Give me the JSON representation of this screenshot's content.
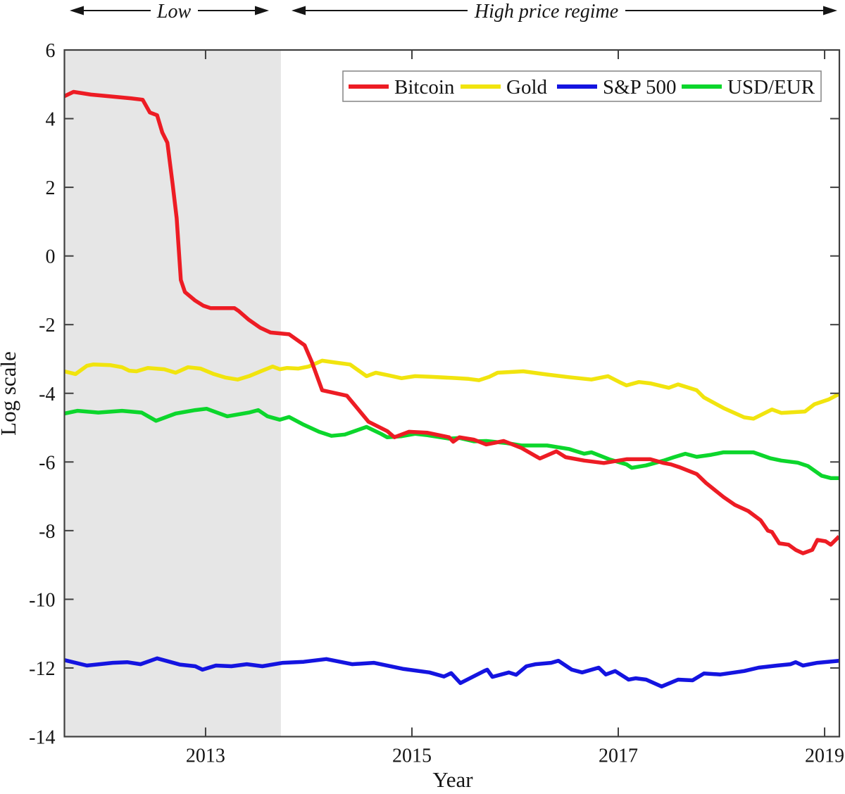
{
  "chart_data": {
    "type": "line",
    "title": "",
    "xlabel": "Year",
    "ylabel": "Log scale",
    "xlim": [
      2011.632,
      2019.143
    ],
    "ylim": [
      -14,
      6
    ],
    "grid": false,
    "legend_position": "top-inside",
    "x_ticks": [
      {
        "v": 2013,
        "label": "2013"
      },
      {
        "v": 2015,
        "label": "2015"
      },
      {
        "v": 2017,
        "label": "2017"
      },
      {
        "v": 2019,
        "label": "2019"
      }
    ],
    "y_ticks": [
      {
        "v": 6,
        "label": "6"
      },
      {
        "v": 4,
        "label": "4"
      },
      {
        "v": 2,
        "label": "2"
      },
      {
        "v": 0,
        "label": "0"
      },
      {
        "v": -2,
        "label": "-2"
      },
      {
        "v": -4,
        "label": "-4"
      },
      {
        "v": -6,
        "label": "-6"
      },
      {
        "v": -8,
        "label": "-8"
      },
      {
        "v": -10,
        "label": "-10"
      },
      {
        "v": -12,
        "label": "-12"
      },
      {
        "v": -14,
        "label": "-14"
      }
    ],
    "regimes": [
      {
        "label": "Low",
        "from": 2011.632,
        "to": 2013.73,
        "shaded": true,
        "shade_color": "#e6e6e6"
      },
      {
        "label": "High price regime",
        "from": 2013.73,
        "to": 2019.143,
        "shaded": false
      }
    ],
    "series": [
      {
        "name": "Bitcoin",
        "color": "#ed1c24",
        "points": [
          [
            2011.63,
            4.65
          ],
          [
            2011.72,
            4.78
          ],
          [
            2011.89,
            4.7
          ],
          [
            2012.1,
            4.64
          ],
          [
            2012.28,
            4.59
          ],
          [
            2012.39,
            4.55
          ],
          [
            2012.46,
            4.18
          ],
          [
            2012.53,
            4.1
          ],
          [
            2012.58,
            3.6
          ],
          [
            2012.63,
            3.3
          ],
          [
            2012.68,
            2.1
          ],
          [
            2012.72,
            1.1
          ],
          [
            2012.76,
            -0.7
          ],
          [
            2012.8,
            -1.05
          ],
          [
            2012.9,
            -1.3
          ],
          [
            2012.98,
            -1.45
          ],
          [
            2013.05,
            -1.52
          ],
          [
            2013.28,
            -1.52
          ],
          [
            2013.32,
            -1.6
          ],
          [
            2013.42,
            -1.86
          ],
          [
            2013.53,
            -2.09
          ],
          [
            2013.63,
            -2.23
          ],
          [
            2013.81,
            -2.28
          ],
          [
            2013.96,
            -2.6
          ],
          [
            2014.03,
            -3.09
          ],
          [
            2014.13,
            -3.91
          ],
          [
            2014.22,
            -3.97
          ],
          [
            2014.37,
            -4.07
          ],
          [
            2014.58,
            -4.83
          ],
          [
            2014.76,
            -5.1
          ],
          [
            2014.83,
            -5.28
          ],
          [
            2014.97,
            -5.12
          ],
          [
            2015.15,
            -5.15
          ],
          [
            2015.36,
            -5.28
          ],
          [
            2015.4,
            -5.41
          ],
          [
            2015.46,
            -5.28
          ],
          [
            2015.6,
            -5.35
          ],
          [
            2015.72,
            -5.49
          ],
          [
            2015.89,
            -5.39
          ],
          [
            2016.06,
            -5.59
          ],
          [
            2016.24,
            -5.9
          ],
          [
            2016.4,
            -5.69
          ],
          [
            2016.49,
            -5.86
          ],
          [
            2016.67,
            -5.96
          ],
          [
            2016.86,
            -6.03
          ],
          [
            2017.08,
            -5.92
          ],
          [
            2017.31,
            -5.92
          ],
          [
            2017.44,
            -6.03
          ],
          [
            2017.51,
            -6.07
          ],
          [
            2017.59,
            -6.15
          ],
          [
            2017.76,
            -6.35
          ],
          [
            2017.85,
            -6.61
          ],
          [
            2018.02,
            -7.02
          ],
          [
            2018.13,
            -7.25
          ],
          [
            2018.26,
            -7.43
          ],
          [
            2018.38,
            -7.7
          ],
          [
            2018.45,
            -8.0
          ],
          [
            2018.49,
            -8.04
          ],
          [
            2018.56,
            -8.37
          ],
          [
            2018.65,
            -8.41
          ],
          [
            2018.72,
            -8.56
          ],
          [
            2018.79,
            -8.66
          ],
          [
            2018.88,
            -8.56
          ],
          [
            2018.93,
            -8.27
          ],
          [
            2019.01,
            -8.31
          ],
          [
            2019.06,
            -8.41
          ],
          [
            2019.14,
            -8.17
          ]
        ]
      },
      {
        "name": "Gold",
        "color": "#f1e40e",
        "points": [
          [
            2011.63,
            -3.36
          ],
          [
            2011.74,
            -3.44
          ],
          [
            2011.85,
            -3.2
          ],
          [
            2011.91,
            -3.16
          ],
          [
            2012.08,
            -3.18
          ],
          [
            2012.19,
            -3.24
          ],
          [
            2012.26,
            -3.34
          ],
          [
            2012.33,
            -3.36
          ],
          [
            2012.44,
            -3.26
          ],
          [
            2012.6,
            -3.3
          ],
          [
            2012.71,
            -3.4
          ],
          [
            2012.83,
            -3.24
          ],
          [
            2012.95,
            -3.28
          ],
          [
            2013.08,
            -3.44
          ],
          [
            2013.19,
            -3.54
          ],
          [
            2013.31,
            -3.6
          ],
          [
            2013.42,
            -3.5
          ],
          [
            2013.55,
            -3.34
          ],
          [
            2013.65,
            -3.22
          ],
          [
            2013.72,
            -3.3
          ],
          [
            2013.79,
            -3.26
          ],
          [
            2013.9,
            -3.28
          ],
          [
            2014.0,
            -3.22
          ],
          [
            2014.13,
            -3.05
          ],
          [
            2014.25,
            -3.1
          ],
          [
            2014.4,
            -3.16
          ],
          [
            2014.56,
            -3.5
          ],
          [
            2014.65,
            -3.4
          ],
          [
            2014.78,
            -3.48
          ],
          [
            2014.9,
            -3.56
          ],
          [
            2015.03,
            -3.5
          ],
          [
            2015.18,
            -3.52
          ],
          [
            2015.38,
            -3.55
          ],
          [
            2015.55,
            -3.58
          ],
          [
            2015.65,
            -3.62
          ],
          [
            2015.75,
            -3.52
          ],
          [
            2015.83,
            -3.4
          ],
          [
            2016.08,
            -3.36
          ],
          [
            2016.3,
            -3.45
          ],
          [
            2016.52,
            -3.53
          ],
          [
            2016.74,
            -3.6
          ],
          [
            2016.9,
            -3.5
          ],
          [
            2017.01,
            -3.67
          ],
          [
            2017.08,
            -3.77
          ],
          [
            2017.2,
            -3.67
          ],
          [
            2017.31,
            -3.71
          ],
          [
            2017.49,
            -3.84
          ],
          [
            2017.58,
            -3.74
          ],
          [
            2017.76,
            -3.91
          ],
          [
            2017.83,
            -4.12
          ],
          [
            2018.02,
            -4.43
          ],
          [
            2018.22,
            -4.7
          ],
          [
            2018.31,
            -4.74
          ],
          [
            2018.49,
            -4.47
          ],
          [
            2018.58,
            -4.57
          ],
          [
            2018.81,
            -4.53
          ],
          [
            2018.9,
            -4.32
          ],
          [
            2019.04,
            -4.18
          ],
          [
            2019.14,
            -4.02
          ]
        ]
      },
      {
        "name": "S&P 500",
        "color": "#1414e0",
        "points": [
          [
            2011.63,
            -11.77
          ],
          [
            2011.85,
            -11.93
          ],
          [
            2012.1,
            -11.85
          ],
          [
            2012.24,
            -11.83
          ],
          [
            2012.37,
            -11.89
          ],
          [
            2012.53,
            -11.72
          ],
          [
            2012.75,
            -11.9
          ],
          [
            2012.9,
            -11.95
          ],
          [
            2012.97,
            -12.05
          ],
          [
            2013.1,
            -11.93
          ],
          [
            2013.25,
            -11.95
          ],
          [
            2013.4,
            -11.89
          ],
          [
            2013.55,
            -11.95
          ],
          [
            2013.75,
            -11.85
          ],
          [
            2013.95,
            -11.82
          ],
          [
            2014.17,
            -11.74
          ],
          [
            2014.42,
            -11.89
          ],
          [
            2014.63,
            -11.85
          ],
          [
            2014.92,
            -12.03
          ],
          [
            2015.17,
            -12.13
          ],
          [
            2015.31,
            -12.25
          ],
          [
            2015.38,
            -12.15
          ],
          [
            2015.47,
            -12.44
          ],
          [
            2015.7,
            -12.09
          ],
          [
            2015.73,
            -12.05
          ],
          [
            2015.78,
            -12.26
          ],
          [
            2015.94,
            -12.13
          ],
          [
            2016.01,
            -12.2
          ],
          [
            2016.11,
            -11.95
          ],
          [
            2016.2,
            -11.89
          ],
          [
            2016.35,
            -11.85
          ],
          [
            2016.42,
            -11.79
          ],
          [
            2016.55,
            -12.05
          ],
          [
            2016.65,
            -12.13
          ],
          [
            2016.81,
            -11.99
          ],
          [
            2016.88,
            -12.19
          ],
          [
            2016.97,
            -12.09
          ],
          [
            2017.1,
            -12.34
          ],
          [
            2017.17,
            -12.3
          ],
          [
            2017.27,
            -12.34
          ],
          [
            2017.42,
            -12.54
          ],
          [
            2017.58,
            -12.34
          ],
          [
            2017.72,
            -12.36
          ],
          [
            2017.83,
            -12.16
          ],
          [
            2017.99,
            -12.19
          ],
          [
            2018.22,
            -12.09
          ],
          [
            2018.36,
            -11.99
          ],
          [
            2018.54,
            -11.93
          ],
          [
            2018.67,
            -11.89
          ],
          [
            2018.72,
            -11.83
          ],
          [
            2018.79,
            -11.93
          ],
          [
            2018.93,
            -11.85
          ],
          [
            2019.14,
            -11.79
          ]
        ]
      },
      {
        "name": "USD/EUR",
        "color": "#0cd62c",
        "points": [
          [
            2011.63,
            -4.59
          ],
          [
            2011.76,
            -4.51
          ],
          [
            2011.96,
            -4.56
          ],
          [
            2012.19,
            -4.51
          ],
          [
            2012.38,
            -4.56
          ],
          [
            2012.52,
            -4.8
          ],
          [
            2012.71,
            -4.59
          ],
          [
            2012.9,
            -4.49
          ],
          [
            2013.01,
            -4.45
          ],
          [
            2013.21,
            -4.67
          ],
          [
            2013.42,
            -4.56
          ],
          [
            2013.51,
            -4.49
          ],
          [
            2013.6,
            -4.67
          ],
          [
            2013.72,
            -4.77
          ],
          [
            2013.81,
            -4.69
          ],
          [
            2013.94,
            -4.9
          ],
          [
            2014.1,
            -5.12
          ],
          [
            2014.22,
            -5.24
          ],
          [
            2014.35,
            -5.2
          ],
          [
            2014.56,
            -4.98
          ],
          [
            2014.7,
            -5.18
          ],
          [
            2014.76,
            -5.28
          ],
          [
            2014.9,
            -5.25
          ],
          [
            2015.03,
            -5.18
          ],
          [
            2015.15,
            -5.22
          ],
          [
            2015.36,
            -5.32
          ],
          [
            2015.46,
            -5.3
          ],
          [
            2015.6,
            -5.4
          ],
          [
            2015.72,
            -5.39
          ],
          [
            2015.92,
            -5.45
          ],
          [
            2016.06,
            -5.52
          ],
          [
            2016.31,
            -5.52
          ],
          [
            2016.52,
            -5.62
          ],
          [
            2016.67,
            -5.76
          ],
          [
            2016.74,
            -5.72
          ],
          [
            2016.92,
            -5.93
          ],
          [
            2017.08,
            -6.07
          ],
          [
            2017.13,
            -6.17
          ],
          [
            2017.27,
            -6.1
          ],
          [
            2017.44,
            -5.96
          ],
          [
            2017.54,
            -5.86
          ],
          [
            2017.65,
            -5.76
          ],
          [
            2017.76,
            -5.85
          ],
          [
            2017.9,
            -5.79
          ],
          [
            2018.02,
            -5.72
          ],
          [
            2018.31,
            -5.72
          ],
          [
            2018.47,
            -5.89
          ],
          [
            2018.58,
            -5.96
          ],
          [
            2018.74,
            -6.02
          ],
          [
            2018.84,
            -6.12
          ],
          [
            2018.97,
            -6.4
          ],
          [
            2019.06,
            -6.47
          ],
          [
            2019.14,
            -6.47
          ]
        ]
      }
    ],
    "legend_entries": [
      "Bitcoin",
      "Gold",
      "S&P 500",
      "USD/EUR"
    ]
  },
  "style_colors": {
    "axis": "#3f3f3f",
    "text": "#151515",
    "shade": "#e6e6e6",
    "legend_border": "#8c8c8c"
  }
}
